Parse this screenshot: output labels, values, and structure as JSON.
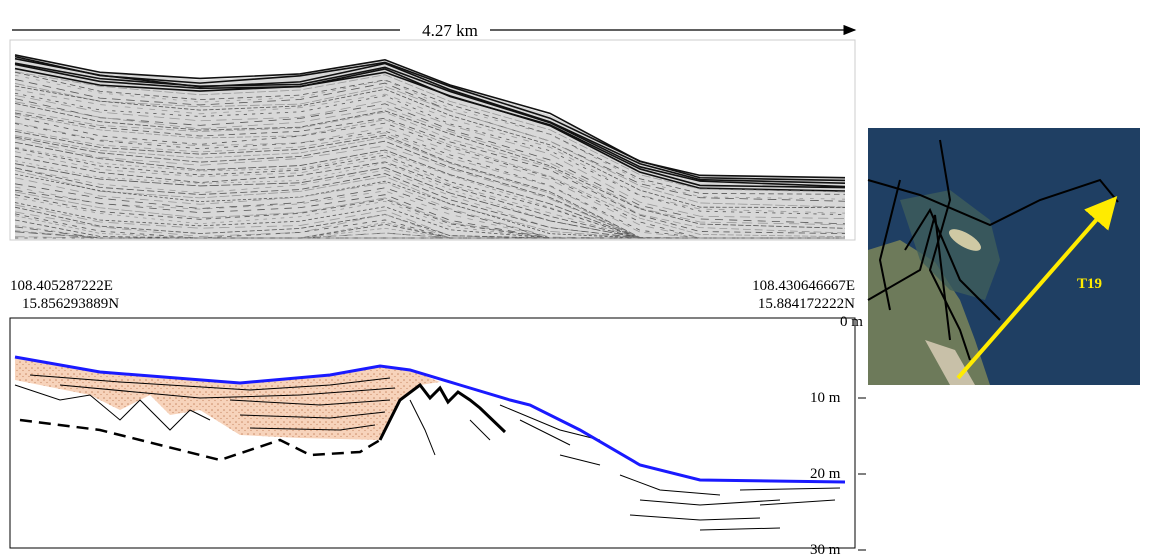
{
  "profile": {
    "distance_label": "4.27 km",
    "start": {
      "lon": "108.405287222E",
      "lat": "15.856293889N"
    },
    "end": {
      "lon": "108.430646667E",
      "lat": "15.884172222N"
    }
  },
  "depth_scale": {
    "labels": [
      "0 m",
      "10 m",
      "20 m",
      "30 m"
    ]
  },
  "map": {
    "line_label": "T19"
  }
}
